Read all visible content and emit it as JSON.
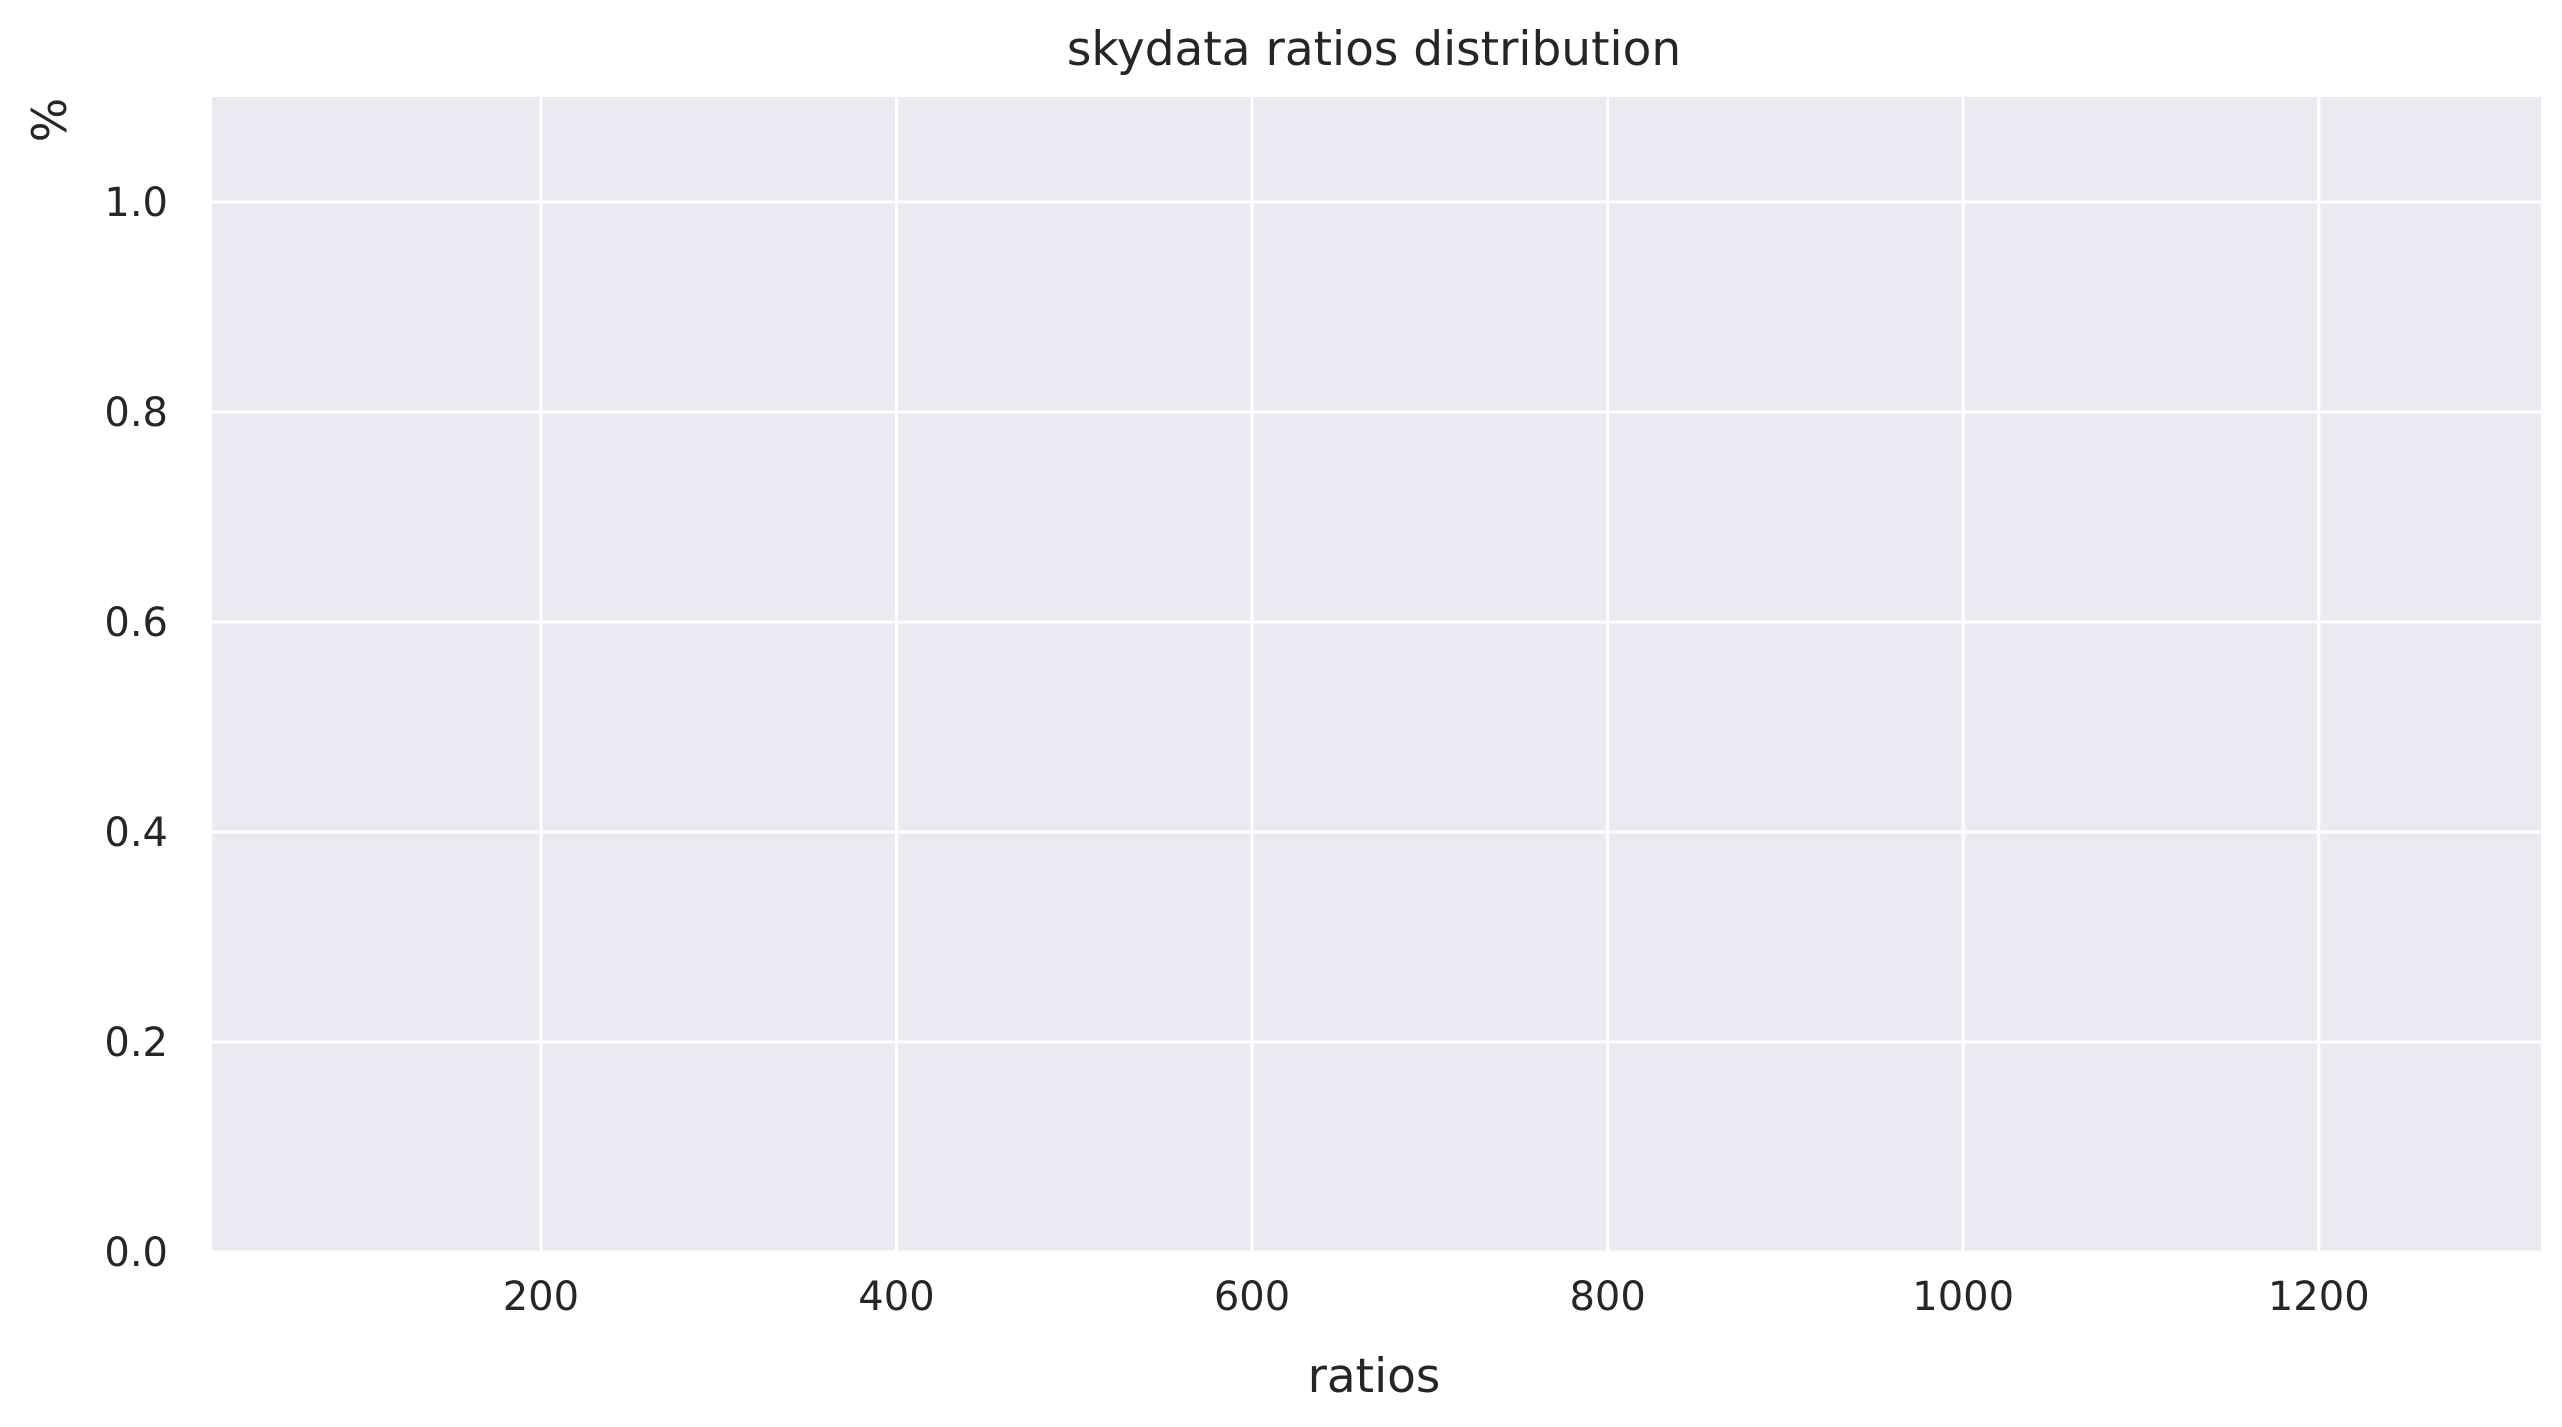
{
  "chart_data": {
    "type": "bar",
    "title": "skydata ratios distribution",
    "xlabel": "ratios",
    "ylabel": "%",
    "xlim": [
      15,
      1325
    ],
    "ylim": [
      0,
      1.1
    ],
    "xticks": [
      200,
      400,
      600,
      800,
      1000,
      1200
    ],
    "xtick_labels": [
      "200",
      "400",
      "600",
      "800",
      "1000",
      "1200"
    ],
    "yticks": [
      0.0,
      0.2,
      0.4,
      0.6,
      0.8,
      1.0
    ],
    "ytick_labels": [
      "0.0",
      "0.2",
      "0.4",
      "0.6",
      "0.8",
      "1.0"
    ],
    "categories": [],
    "values": [],
    "grid": true,
    "colors": {
      "plot_background": "#eaeaf2",
      "grid": "#ffffff",
      "text": "#262626"
    }
  }
}
